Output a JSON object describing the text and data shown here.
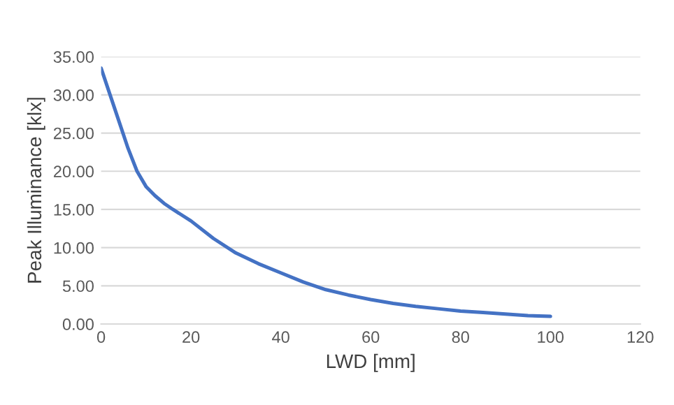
{
  "chart_data": {
    "type": "line",
    "xlabel": "LWD [mm]",
    "ylabel": "Peak Illuminance [klx]",
    "x": [
      0,
      2,
      4,
      6,
      8,
      10,
      12,
      14,
      16,
      20,
      25,
      30,
      35,
      40,
      45,
      50,
      55,
      60,
      65,
      70,
      75,
      80,
      85,
      90,
      95,
      100
    ],
    "series": [
      {
        "color": "#4472c4",
        "values": [
          33.5,
          30,
          26.5,
          23,
          20,
          18,
          16.8,
          15.8,
          15,
          13.5,
          11.2,
          9.3,
          7.9,
          6.7,
          5.5,
          4.5,
          3.8,
          3.2,
          2.7,
          2.3,
          2.0,
          1.7,
          1.5,
          1.3,
          1.1,
          1.0
        ]
      }
    ],
    "xlim": [
      0,
      120
    ],
    "xticks": [
      0,
      20,
      40,
      60,
      80,
      100,
      120
    ],
    "ylim": [
      0,
      35
    ],
    "yticks": [
      {
        "value": 0,
        "label": "0.00"
      },
      {
        "value": 5,
        "label": "5.00"
      },
      {
        "value": 10,
        "label": "10.00"
      },
      {
        "value": 15,
        "label": "15.00"
      },
      {
        "value": 20,
        "label": "20.00"
      },
      {
        "value": 25,
        "label": "25.00"
      },
      {
        "value": 30,
        "label": "30.00"
      },
      {
        "value": 35,
        "label": "35.00"
      }
    ],
    "grid": "y",
    "marker": "none",
    "line_style": "solid"
  }
}
